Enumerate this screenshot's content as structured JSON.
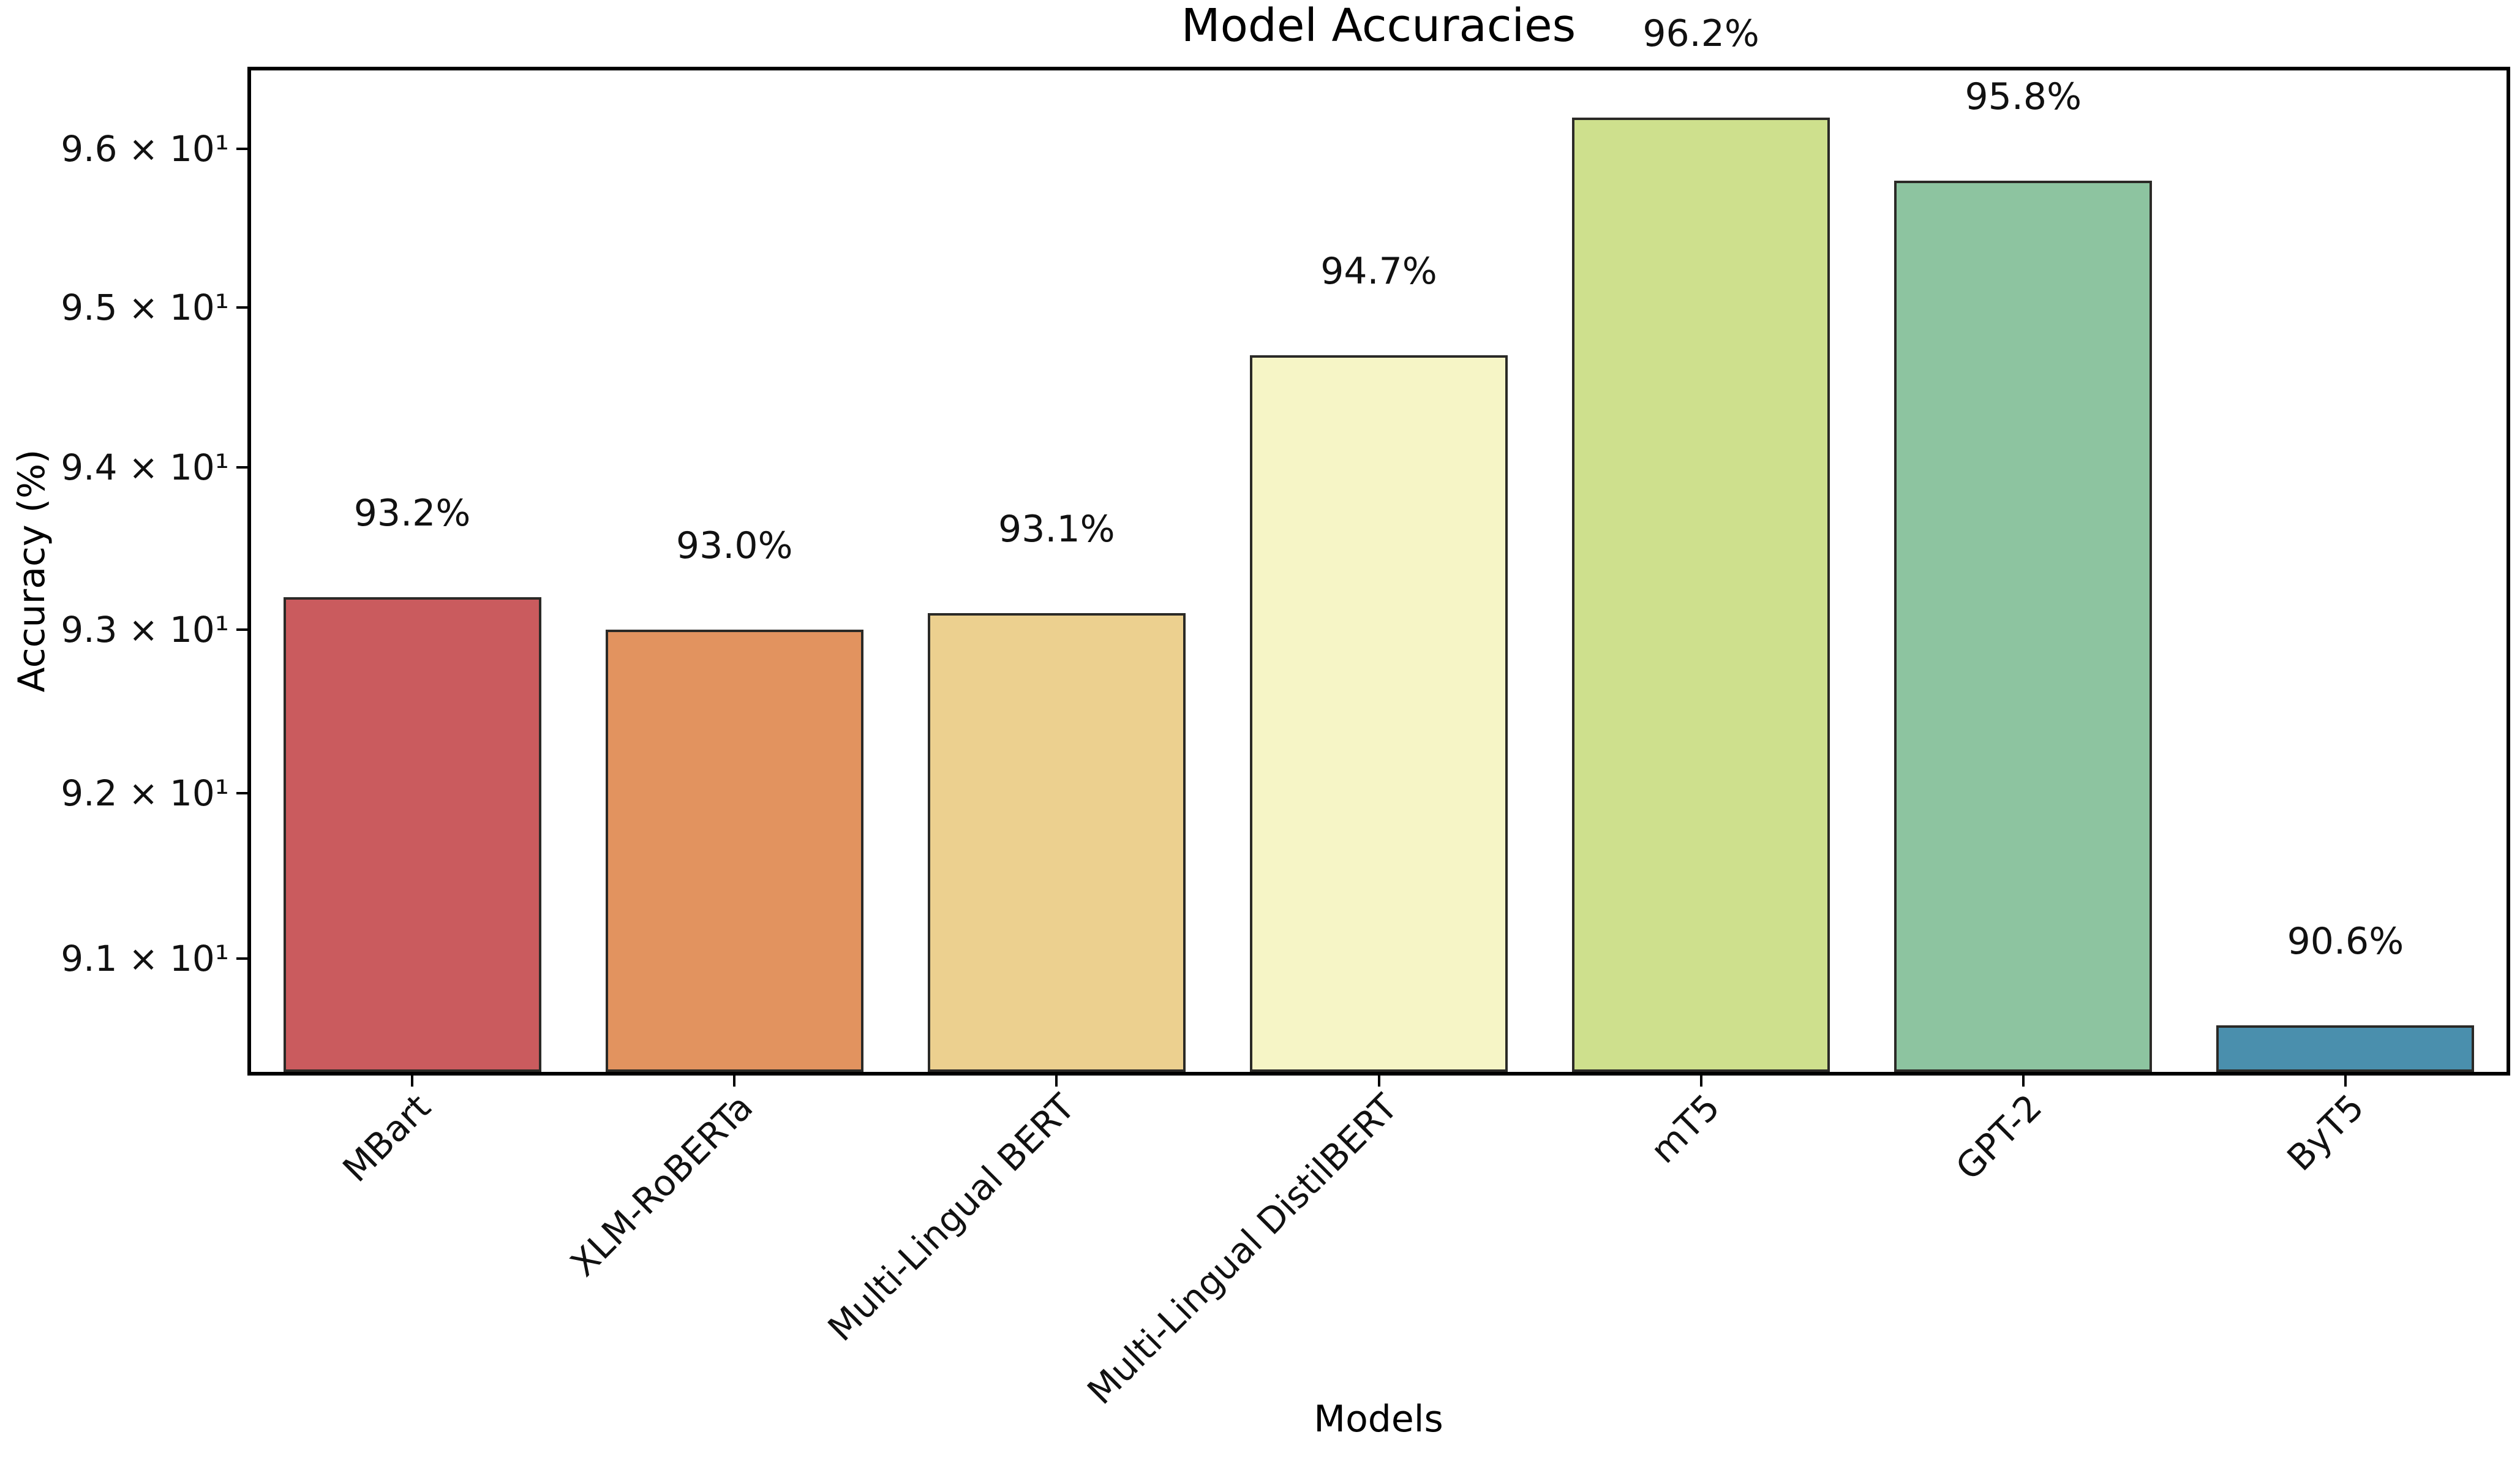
{
  "chart_data": {
    "type": "bar",
    "title": "Model Accuracies",
    "xlabel": "Models",
    "ylabel": "Accuracy (%)",
    "yscale": "log",
    "ylim": [
      90.32,
      96.5
    ],
    "grid": false,
    "legend": false,
    "categories": [
      "MBart",
      "XLM-RoBERTa",
      "Multi-Lingual BERT",
      "Multi-Lingual DistilBERT",
      "mT5",
      "GPT-2",
      "ByT5"
    ],
    "values": [
      93.2,
      93.0,
      93.1,
      94.7,
      96.2,
      95.8,
      90.6
    ],
    "bar_value_labels": [
      "93.2%",
      "93.0%",
      "93.1%",
      "94.7%",
      "96.2%",
      "95.8%",
      "90.6%"
    ],
    "bar_colors": [
      "#ca5b5e",
      "#e2935f",
      "#ecd08f",
      "#f6f5c6",
      "#cee08d",
      "#8dc4a0",
      "#4a8fad"
    ],
    "bar_edge_color": "#2b2a27",
    "yticks": [
      {
        "value": 91,
        "label": "9.1 × 10¹"
      },
      {
        "value": 92,
        "label": "9.2 × 10¹"
      },
      {
        "value": 93,
        "label": "9.3 × 10¹"
      },
      {
        "value": 94,
        "label": "9.4 × 10¹"
      },
      {
        "value": 95,
        "label": "9.5 × 10¹"
      },
      {
        "value": 96,
        "label": "9.6 × 10¹"
      }
    ]
  }
}
